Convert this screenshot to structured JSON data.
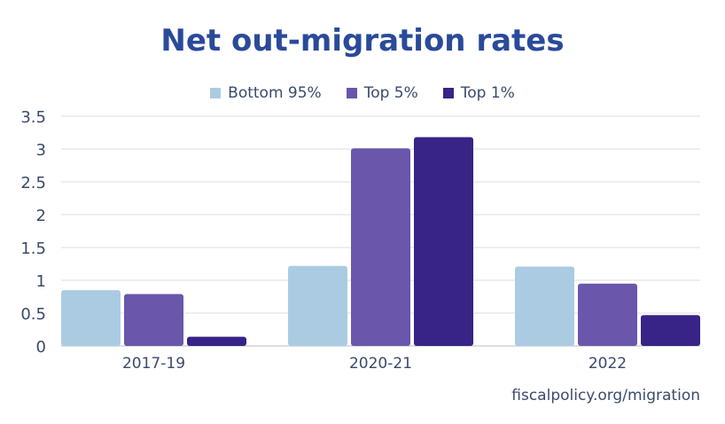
{
  "chart_data": {
    "type": "bar",
    "title": "Net out-migration rates",
    "categories": [
      "2017-19",
      "2020-21",
      "2022"
    ],
    "series": [
      {
        "name": "Bottom 95%",
        "color": "#abcbe2",
        "values": [
          0.85,
          1.22,
          1.21
        ]
      },
      {
        "name": "Top 5%",
        "color": "#6a56ab",
        "values": [
          0.79,
          3.01,
          0.95
        ]
      },
      {
        "name": "Top 1%",
        "color": "#372486",
        "values": [
          0.14,
          3.18,
          0.47
        ]
      }
    ],
    "ylim": [
      0,
      3.5
    ],
    "yticks": [
      "0",
      "0.5",
      "1",
      "1.5",
      "2",
      "2.5",
      "3",
      "3.5"
    ],
    "grid": true,
    "legend": "top-center",
    "xlabel": "",
    "ylabel": ""
  },
  "source": "fiscalpolicy.org/migration"
}
